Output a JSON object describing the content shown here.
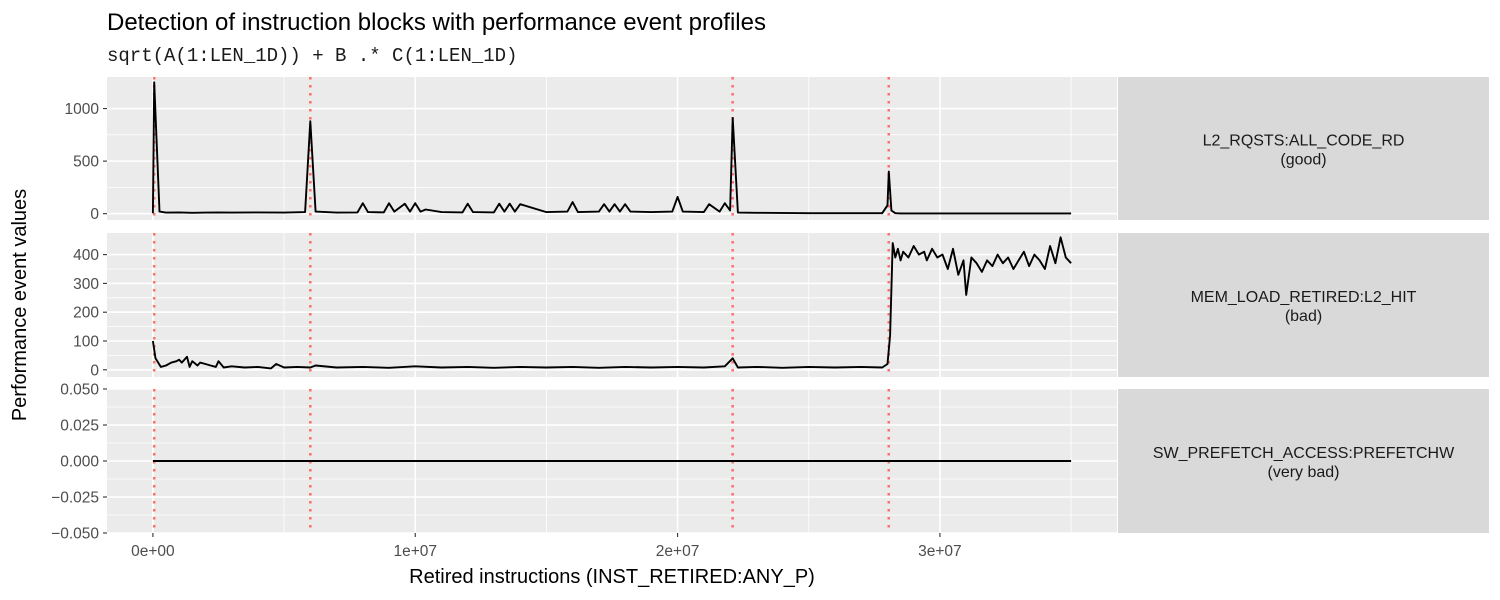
{
  "chart_data": {
    "type": "line",
    "title": "Detection of instruction blocks with performance event profiles",
    "subtitle": "sqrt(A(1:LEN_1D)) + B .* C(1:LEN_1D)",
    "xlabel": "Retired instructions (INST_RETIRED:ANY_P)",
    "ylabel": "Performance event values",
    "xlim": [
      -1750000,
      36750000
    ],
    "x_ticks": [
      0,
      10000000,
      20000000,
      30000000
    ],
    "x_tick_labels": [
      "0e+00",
      "1e+07",
      "2e+07",
      "3e+07"
    ],
    "grid": true,
    "block_boundaries": {
      "color": "#f8766d",
      "style": "dotted",
      "x": [
        50000,
        6000000,
        22100000,
        28050000
      ]
    },
    "panels": [
      {
        "strip_label": "L2_RQSTS:ALL_CODE_RD",
        "strip_sublabel": "(good)",
        "ylim": [
          -60,
          1300
        ],
        "y_ticks": [
          0,
          500,
          1000
        ],
        "y_tick_labels": [
          "0",
          "500",
          "1000"
        ],
        "series": [
          {
            "x": [
              0,
              50000,
              250000,
              500000,
              1000000,
              1500000,
              2000000,
              2500000,
              3000000,
              4000000,
              5000000,
              5800000,
              6000000,
              6200000,
              7000000,
              7800000,
              8000000,
              8200000,
              8800000,
              9000000,
              9200000,
              9600000,
              9800000,
              10000000,
              10200000,
              10400000,
              11000000,
              11800000,
              12000000,
              12200000,
              13000000,
              13200000,
              13400000,
              13600000,
              13800000,
              14000000,
              15000000,
              15800000,
              16000000,
              16200000,
              17000000,
              17200000,
              17400000,
              17600000,
              17800000,
              18000000,
              18200000,
              19000000,
              19800000,
              20000000,
              20200000,
              21000000,
              21200000,
              21600000,
              21800000,
              22000000,
              22100000,
              22300000,
              23000000,
              25000000,
              27000000,
              27800000,
              28000000,
              28050000,
              28150000,
              28300000,
              28500000,
              30000000,
              32000000,
              35000000
            ],
            "values": [
              5,
              1250,
              20,
              10,
              12,
              8,
              10,
              12,
              10,
              12,
              10,
              15,
              880,
              20,
              10,
              12,
              100,
              15,
              12,
              100,
              20,
              95,
              20,
              100,
              20,
              40,
              15,
              12,
              95,
              15,
              12,
              95,
              20,
              95,
              20,
              90,
              15,
              20,
              110,
              15,
              20,
              90,
              20,
              90,
              20,
              90,
              20,
              15,
              20,
              160,
              20,
              15,
              90,
              20,
              100,
              30,
              910,
              10,
              8,
              5,
              5,
              5,
              80,
              400,
              30,
              5,
              3,
              3,
              3,
              3
            ]
          }
        ]
      },
      {
        "strip_label": "MEM_LOAD_RETIRED:L2_HIT",
        "strip_sublabel": "(bad)",
        "ylim": [
          -25,
          475
        ],
        "y_ticks": [
          0,
          100,
          200,
          300,
          400
        ],
        "y_tick_labels": [
          "0",
          "100",
          "200",
          "300",
          "400"
        ],
        "series": [
          {
            "x": [
              0,
              100000,
              300000,
              500000,
              700000,
              900000,
              1000000,
              1100000,
              1300000,
              1400000,
              1500000,
              1700000,
              1800000,
              2000000,
              2200000,
              2400000,
              2500000,
              2700000,
              3000000,
              3500000,
              4000000,
              4500000,
              4700000,
              5000000,
              5500000,
              6000000,
              6200000,
              7000000,
              8000000,
              9000000,
              10000000,
              11000000,
              12000000,
              13000000,
              14000000,
              15000000,
              16000000,
              17000000,
              18000000,
              19000000,
              20000000,
              21000000,
              21800000,
              22100000,
              22300000,
              23000000,
              24000000,
              25000000,
              26000000,
              27000000,
              27800000,
              28000000,
              28100000,
              28200000,
              28300000,
              28400000,
              28500000,
              28600000,
              28800000,
              29000000,
              29200000,
              29400000,
              29500000,
              29700000,
              29900000,
              30100000,
              30300000,
              30500000,
              30700000,
              30900000,
              31000000,
              31200000,
              31400000,
              31600000,
              31800000,
              32000000,
              32200000,
              32400000,
              32600000,
              32800000,
              33000000,
              33200000,
              33400000,
              33600000,
              33800000,
              34000000,
              34200000,
              34400000,
              34600000,
              34800000,
              35000000
            ],
            "values": [
              100,
              40,
              10,
              15,
              25,
              30,
              35,
              25,
              45,
              10,
              30,
              15,
              25,
              20,
              15,
              10,
              30,
              8,
              12,
              8,
              10,
              5,
              20,
              8,
              10,
              8,
              15,
              8,
              10,
              7,
              12,
              8,
              10,
              7,
              10,
              8,
              10,
              7,
              10,
              8,
              10,
              8,
              12,
              40,
              8,
              10,
              7,
              10,
              8,
              10,
              8,
              20,
              120,
              440,
              390,
              420,
              380,
              410,
              390,
              430,
              400,
              410,
              380,
              420,
              390,
              400,
              350,
              420,
              330,
              380,
              260,
              390,
              370,
              340,
              380,
              360,
              400,
              370,
              390,
              350,
              380,
              410,
              360,
              400,
              380,
              350,
              430,
              370,
              460,
              390,
              370
            ]
          }
        ]
      },
      {
        "strip_label": "SW_PREFETCH_ACCESS:PREFETCHW",
        "strip_sublabel": "(very bad)",
        "ylim": [
          -0.05,
          0.05
        ],
        "y_ticks": [
          -0.05,
          -0.025,
          0,
          0.025,
          0.05
        ],
        "y_tick_labels": [
          "−0.050",
          "−0.025",
          "0.000",
          "0.025",
          "0.050"
        ],
        "series": [
          {
            "x": [
              0,
              35000000
            ],
            "values": [
              0,
              0
            ]
          }
        ]
      }
    ]
  }
}
